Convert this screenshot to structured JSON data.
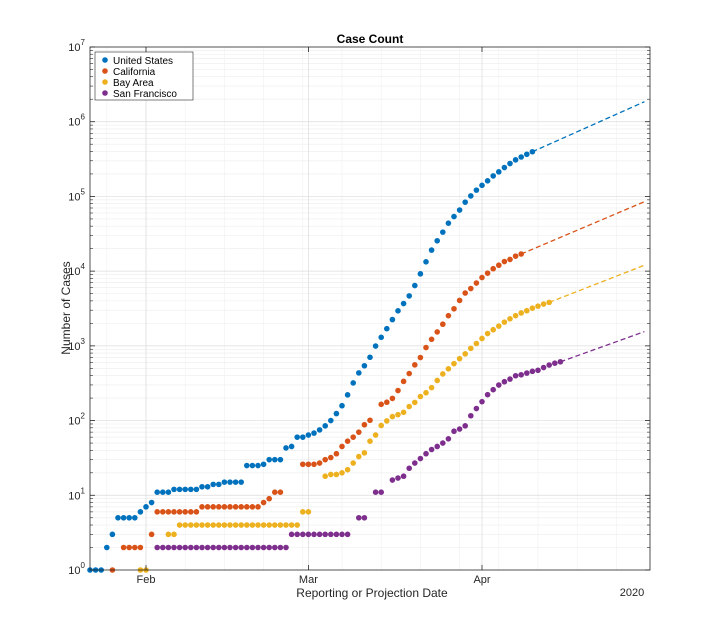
{
  "chart_data": {
    "type": "scatter",
    "title": "Case Count",
    "xlabel": "Reporting or Projection Date",
    "ylabel": "Number of Cases",
    "year_label": "2020",
    "x_units": "days",
    "x_ticks": [
      {
        "label": "Feb",
        "x": "2020-02-01"
      },
      {
        "label": "Mar",
        "x": "2020-03-01"
      },
      {
        "label": "Apr",
        "x": "2020-04-01"
      }
    ],
    "xlim": [
      "2020-01-22",
      "2020-05-01"
    ],
    "yscale": "log",
    "ylim": [
      1,
      10000000
    ],
    "y_ticks": [
      {
        "base": "10",
        "exp": "0"
      },
      {
        "base": "10",
        "exp": "1"
      },
      {
        "base": "10",
        "exp": "2"
      },
      {
        "base": "10",
        "exp": "3"
      },
      {
        "base": "10",
        "exp": "4"
      },
      {
        "base": "10",
        "exp": "5"
      },
      {
        "base": "10",
        "exp": "6"
      },
      {
        "base": "10",
        "exp": "7"
      }
    ],
    "grid": true,
    "legend_position": "top-left",
    "series": [
      {
        "name": "United States",
        "color": "#0072BD",
        "start": "2020-01-22",
        "values": [
          1,
          1,
          1,
          2,
          3,
          5,
          5,
          5,
          5,
          6,
          7,
          8,
          11,
          11,
          11,
          12,
          12,
          12,
          12,
          12,
          13,
          13,
          14,
          14,
          15,
          15,
          15,
          15,
          25,
          25,
          25,
          26,
          30,
          30,
          30,
          43,
          45,
          60,
          60,
          64,
          68,
          75,
          85,
          100,
          124,
          158,
          221,
          319,
          435,
          541,
          704,
          994,
          1301,
          1697,
          2247,
          2943,
          3680,
          4663,
          6411,
          9197,
          13327,
          19131,
          25489,
          33276,
          43847,
          53740,
          65778,
          83836,
          101657,
          121465,
          140909,
          161807,
          188172,
          213372,
          243453,
          275586,
          308850,
          337072,
          366667,
          396223
        ],
        "projection_end": "2020-04-30",
        "projection_end_value": 1850000
      },
      {
        "name": "California",
        "color": "#D95319",
        "start": "2020-01-26",
        "values": [
          1,
          null,
          2,
          2,
          2,
          2,
          null,
          3,
          6,
          6,
          6,
          6,
          6,
          6,
          6,
          6,
          7,
          7,
          7,
          7,
          7,
          7,
          7,
          7,
          7,
          7,
          7,
          8,
          9,
          11,
          11,
          null,
          null,
          null,
          26,
          26,
          26,
          27,
          30,
          32,
          36,
          45,
          53,
          60,
          70,
          88,
          101,
          null,
          165,
          176,
          198,
          252,
          335,
          426,
          557,
          698,
          950,
          1224,
          1536,
          1947,
          2535,
          3136,
          4057,
          5095,
          5852,
          6932,
          8210,
          9399,
          10773,
          12004,
          13438,
          14336,
          15865,
          16957
        ],
        "projection_end": "2020-04-30",
        "projection_end_value": 85000
      },
      {
        "name": "Bay Area",
        "color": "#EDB120",
        "start": "2020-01-31",
        "values": [
          1,
          1,
          null,
          null,
          null,
          3,
          3,
          4,
          4,
          4,
          4,
          4,
          4,
          4,
          4,
          4,
          4,
          4,
          4,
          4,
          4,
          4,
          4,
          4,
          4,
          4,
          4,
          4,
          4,
          6,
          6,
          null,
          null,
          18,
          19,
          19,
          20,
          22,
          27,
          33,
          37,
          53,
          64,
          86,
          99,
          113,
          120,
          129,
          154,
          175,
          210,
          236,
          276,
          344,
          421,
          493,
          578,
          674,
          782,
          925,
          1075,
          1256,
          1462,
          1644,
          1837,
          2078,
          2301,
          2534,
          2754,
          2952,
          3195,
          3402,
          3625,
          3820
        ],
        "projection_end": "2020-04-30",
        "projection_end_value": 12000
      },
      {
        "name": "San Francisco",
        "color": "#7E2F8E",
        "start": "2020-02-03",
        "values": [
          2,
          2,
          2,
          2,
          2,
          2,
          2,
          2,
          2,
          2,
          2,
          2,
          2,
          2,
          2,
          2,
          2,
          2,
          2,
          2,
          2,
          2,
          2,
          2,
          3,
          3,
          3,
          3,
          3,
          3,
          3,
          3,
          3,
          3,
          3,
          null,
          5,
          5,
          null,
          11,
          11,
          null,
          16,
          17,
          18,
          23,
          27,
          31,
          36,
          41,
          45,
          50,
          57,
          72,
          77,
          85,
          116,
          145,
          179,
          222,
          259,
          299,
          331,
          359,
          398,
          410,
          432,
          456,
          471,
          512,
          554,
          586,
          612
        ],
        "projection_end": "2020-04-30",
        "projection_end_value": 1550
      }
    ]
  }
}
